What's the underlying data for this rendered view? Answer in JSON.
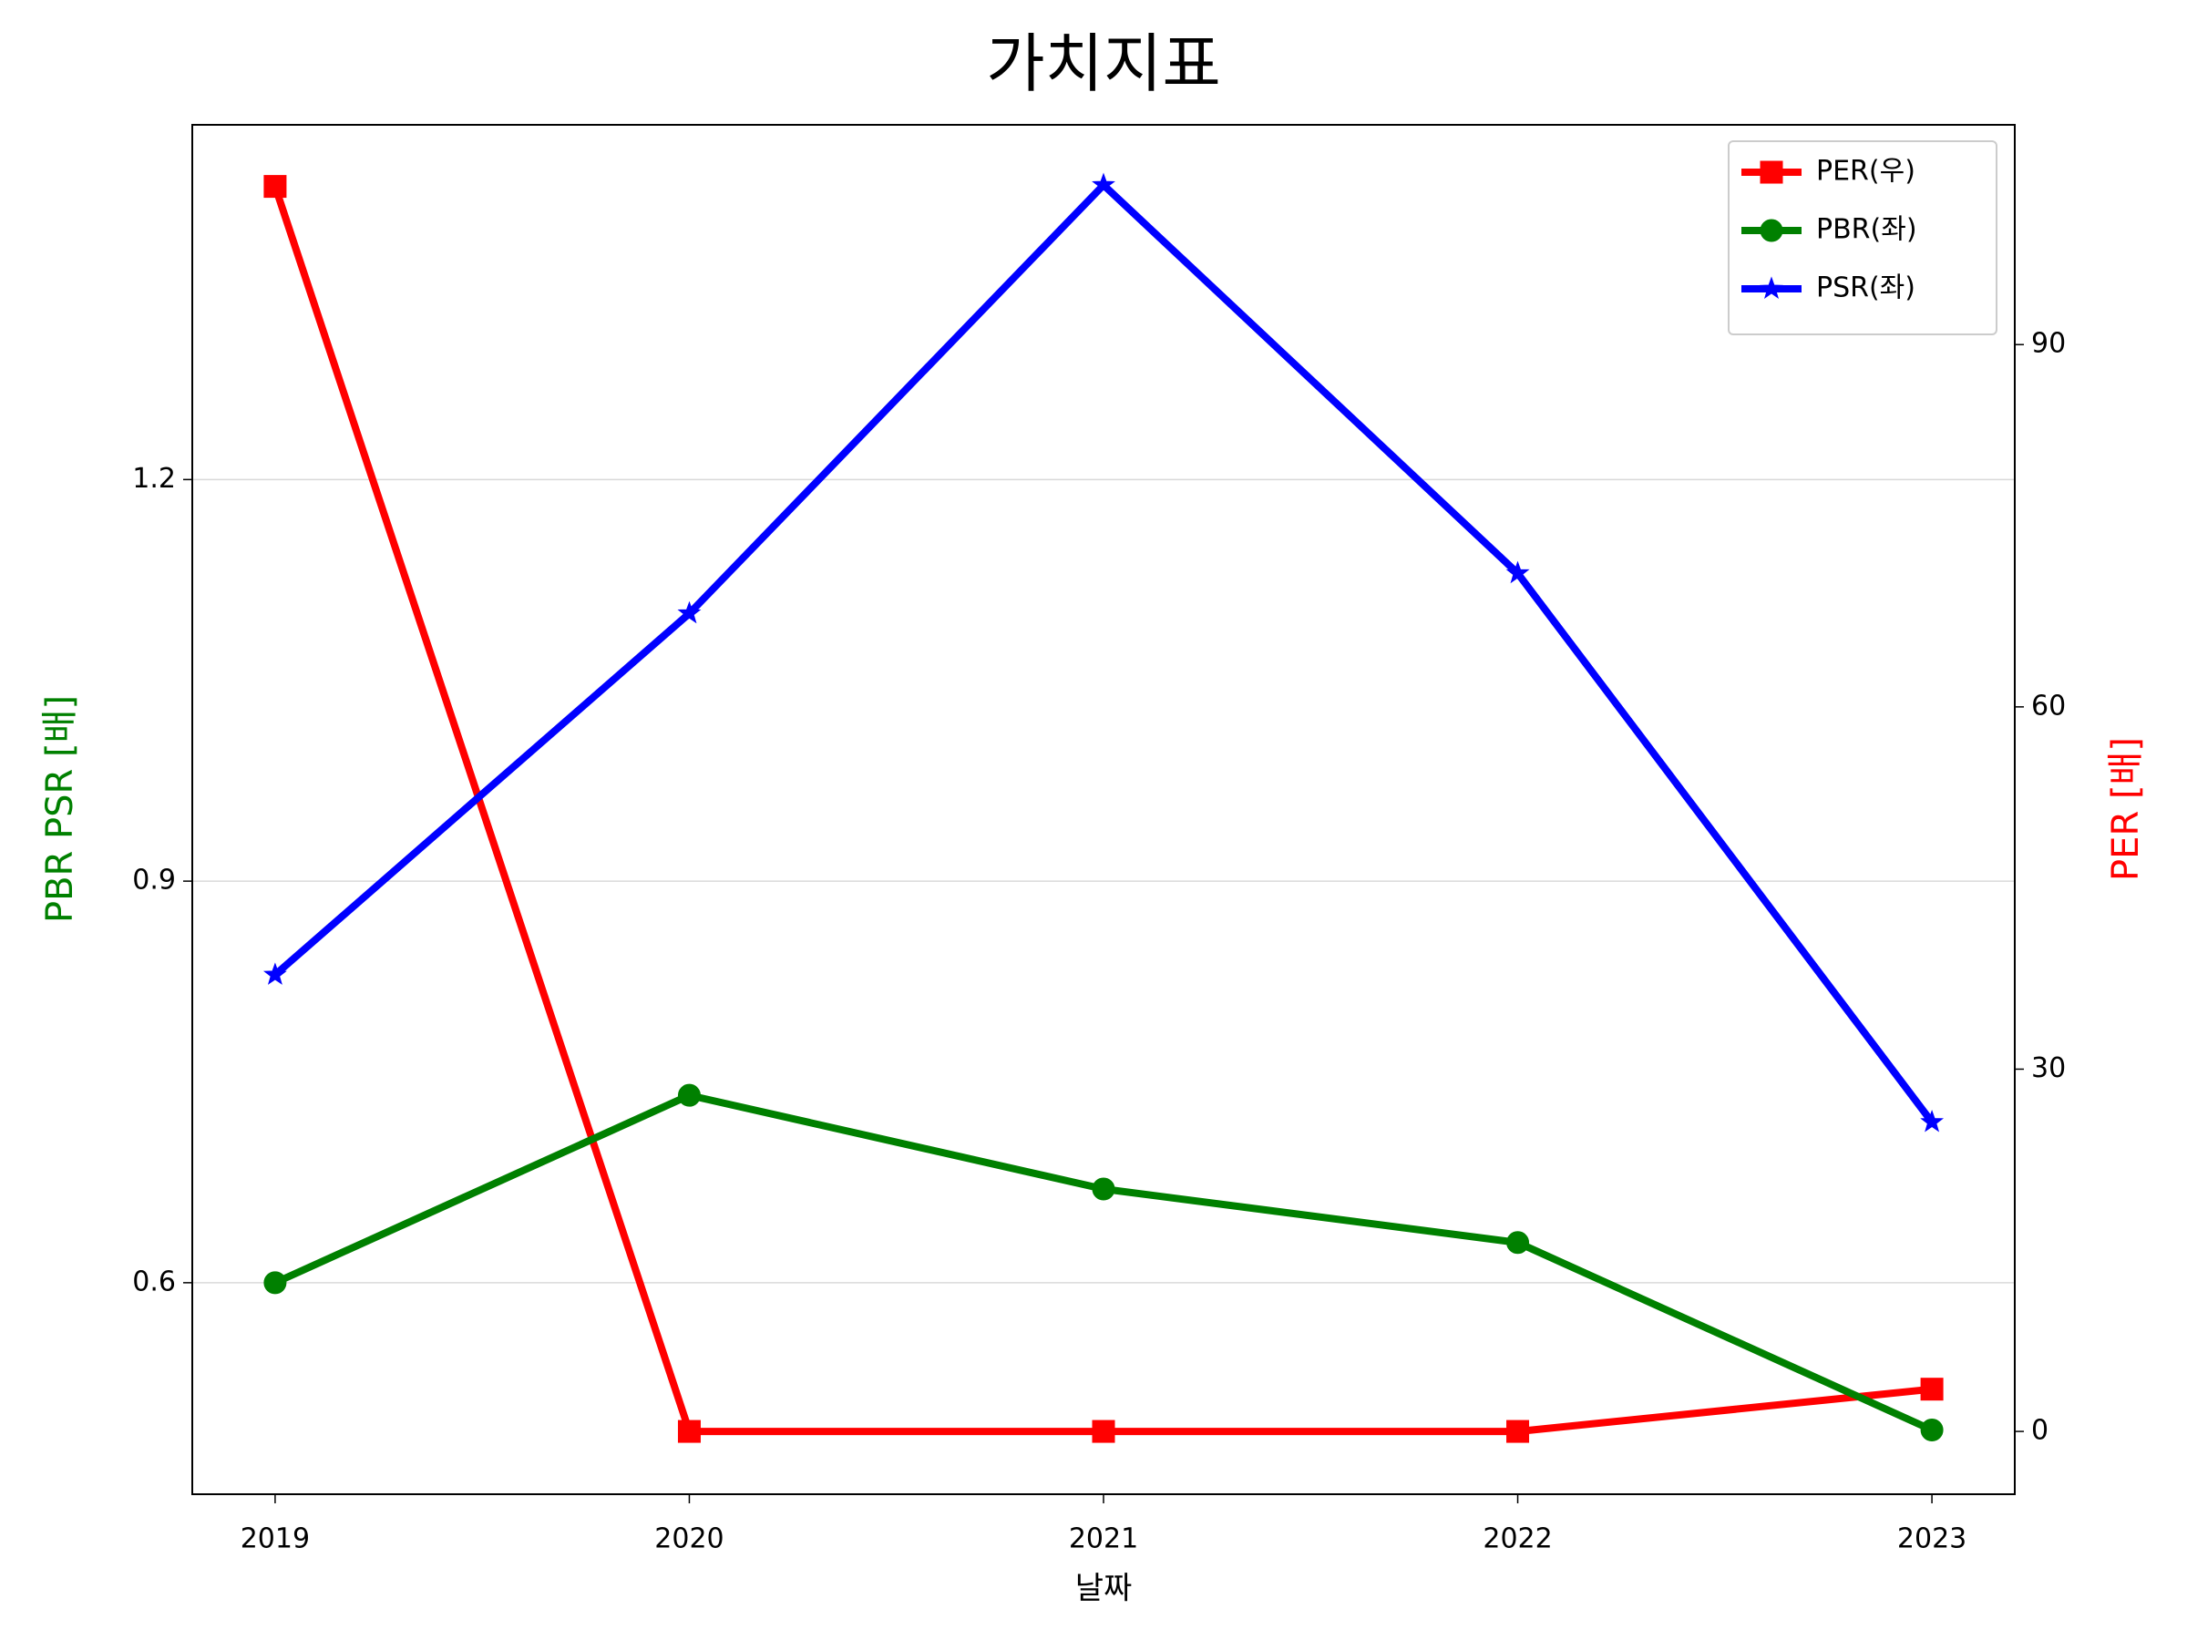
{
  "chart_data": {
    "type": "line",
    "title": "가치지표",
    "x_label": "날짜",
    "y_label": "PBR PSR [배]",
    "y2_label": "PER [배]",
    "y_label_color": "#008000",
    "y2_label_color": "#ff0000",
    "x": [
      2019,
      2020,
      2021,
      2022,
      2023
    ],
    "xlim": [
      2018.8,
      2023.2
    ],
    "xticks": [
      2019,
      2020,
      2021,
      2022,
      2023
    ],
    "ylim": [
      0.442,
      1.465
    ],
    "yticks": [
      0.6,
      0.9,
      1.2
    ],
    "y2lim": [
      -5.2,
      108.2
    ],
    "y2ticks": [
      0,
      30,
      60,
      90
    ],
    "grid": true,
    "legend": "upper right",
    "series": [
      {
        "name": "PER(우)",
        "color": "#ff0000",
        "marker": "square",
        "axis": "y2",
        "values": [
          103.1,
          0,
          0,
          0,
          3.5
        ]
      },
      {
        "name": "PBR(좌)",
        "color": "#008000",
        "marker": "circle",
        "values": [
          0.6,
          0.74,
          0.67,
          0.63,
          0.49
        ]
      },
      {
        "name": "PSR(좌)",
        "color": "#0000ff",
        "marker": "star",
        "values": [
          0.83,
          1.1,
          1.42,
          1.13,
          0.72
        ]
      }
    ]
  }
}
